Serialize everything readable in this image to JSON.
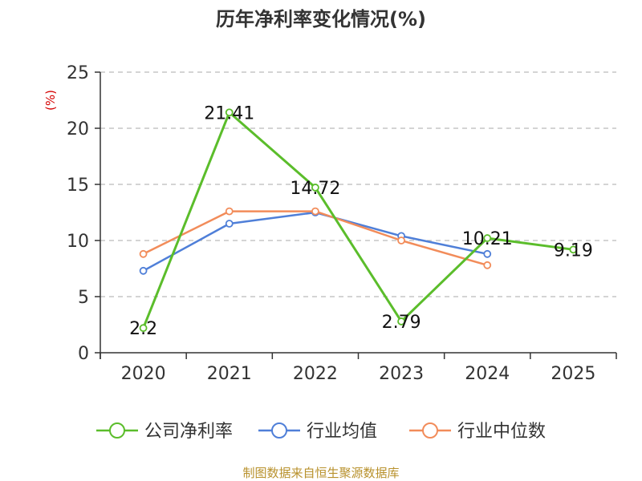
{
  "chart_data": {
    "type": "line",
    "title": "历年净利率变化情况(%)",
    "ylabel": "(%)",
    "xlabel": "",
    "categories": [
      "2020",
      "2021",
      "2022",
      "2023",
      "2024",
      "2025"
    ],
    "ylim": [
      0,
      25
    ],
    "yticks": [
      0,
      5,
      10,
      15,
      20,
      25
    ],
    "grid": true,
    "legend_position": "bottom",
    "series": [
      {
        "name": "公司净利率",
        "color": "#5bbd2b",
        "values": [
          2.2,
          21.41,
          14.72,
          2.79,
          10.21,
          9.19
        ],
        "labels": [
          "2.2",
          "21.41",
          "14.72",
          "2.79",
          "10.21",
          "9.19"
        ]
      },
      {
        "name": "行业均值",
        "color": "#4f7fd8",
        "values": [
          7.3,
          11.5,
          12.5,
          10.4,
          8.8,
          null
        ]
      },
      {
        "name": "行业中位数",
        "color": "#f28c5a",
        "values": [
          8.8,
          12.6,
          12.6,
          10.0,
          7.8,
          null
        ]
      }
    ],
    "source": "制图数据来自恒生聚源数据库"
  }
}
